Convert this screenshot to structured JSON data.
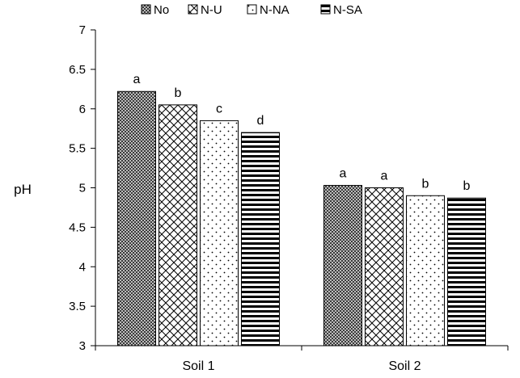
{
  "chart_data": {
    "type": "bar",
    "title": "",
    "xlabel": "",
    "ylabel": "pH",
    "ylim": [
      3,
      7
    ],
    "yticks": [
      3,
      3.5,
      4,
      4.5,
      5,
      5.5,
      6,
      6.5,
      7
    ],
    "grid": false,
    "legend_position": "top",
    "categories": [
      "Soil 1",
      "Soil 2"
    ],
    "series": [
      {
        "name": "No",
        "pattern": "dense-checker",
        "values": [
          6.22,
          5.03
        ],
        "letters": [
          "a",
          "a"
        ]
      },
      {
        "name": "N-U",
        "pattern": "crosshatch",
        "values": [
          6.05,
          5.0
        ],
        "letters": [
          "b",
          "a"
        ]
      },
      {
        "name": "N-NA",
        "pattern": "dots",
        "values": [
          5.85,
          4.9
        ],
        "letters": [
          "c",
          "b"
        ]
      },
      {
        "name": "N-SA",
        "pattern": "horizontal-stripes",
        "values": [
          5.7,
          4.87
        ],
        "letters": [
          "d",
          "b"
        ]
      }
    ]
  }
}
